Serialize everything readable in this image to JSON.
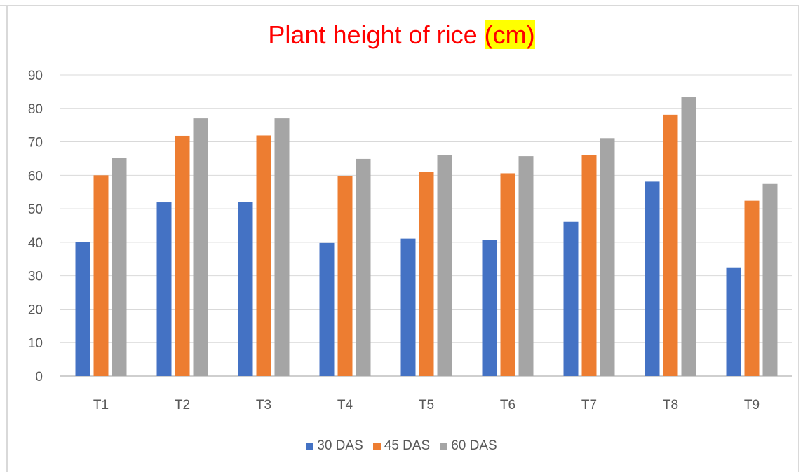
{
  "chart_data": {
    "type": "bar",
    "title": "Plant height of rice",
    "title_highlight": "(cm)",
    "title_color": "#ff0000",
    "title_highlight_background": "#ffff00",
    "categories": [
      "T1",
      "T2",
      "T3",
      "T4",
      "T5",
      "T6",
      "T7",
      "T8",
      "T9"
    ],
    "series": [
      {
        "name": "30 DAS",
        "color": "#4472c4",
        "values": [
          40.1,
          51.9,
          52.0,
          39.8,
          41.1,
          40.7,
          46.1,
          58.1,
          32.5
        ]
      },
      {
        "name": "45 DAS",
        "color": "#ed7d31",
        "values": [
          60.0,
          71.8,
          71.9,
          59.7,
          61.0,
          60.6,
          66.1,
          78.1,
          52.4
        ]
      },
      {
        "name": "60 DAS",
        "color": "#a5a5a5",
        "values": [
          65.1,
          77.0,
          77.0,
          64.9,
          66.1,
          65.7,
          71.1,
          83.3,
          57.4
        ]
      }
    ],
    "xlabel": "",
    "ylabel": "",
    "ylim": [
      0,
      90
    ],
    "yticks": [
      "0",
      "10",
      "20",
      "30",
      "40",
      "50",
      "60",
      "70",
      "80",
      "90"
    ],
    "grid": true,
    "legend_position": "bottom"
  }
}
